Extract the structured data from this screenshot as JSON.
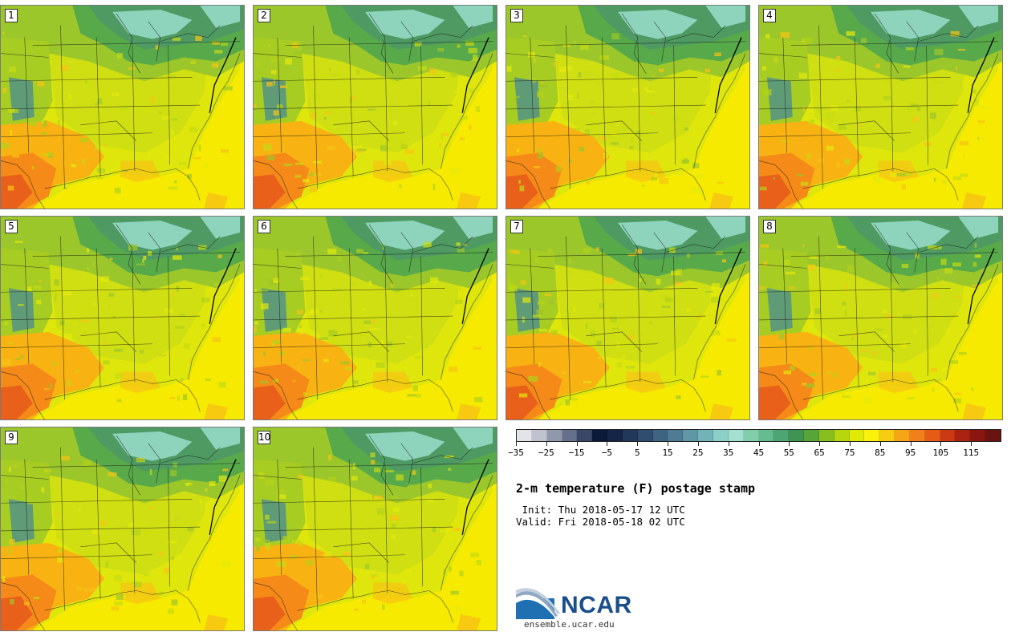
{
  "panels": [
    "1",
    "2",
    "3",
    "4",
    "5",
    "6",
    "7",
    "8",
    "9",
    "10"
  ],
  "colorbar": {
    "colors": [
      "#e3e4e8",
      "#c0c3cf",
      "#9098ab",
      "#66708a",
      "#3b4766",
      "#0c1a3a",
      "#162447",
      "#22385a",
      "#2f4d6e",
      "#3e6481",
      "#4f7c94",
      "#6097a6",
      "#72b3b7",
      "#8ccfc6",
      "#a3e0d1",
      "#82ceab",
      "#66bb90",
      "#4ea574",
      "#3f9451",
      "#57a538",
      "#89bf1c",
      "#b6d60e",
      "#e0ea06",
      "#fbf20c",
      "#f8cc12",
      "#f6a516",
      "#f2801a",
      "#e65c17",
      "#cc3a13",
      "#ab2210",
      "#8c160f",
      "#6a1410"
    ],
    "tick_labels": [
      "−35",
      "−25",
      "−15",
      "−5",
      "5",
      "15",
      "25",
      "35",
      "45",
      "55",
      "65",
      "75",
      "85",
      "95",
      "105",
      "115"
    ]
  },
  "title": "2-m temperature (F) postage stamp",
  "init_line": " Init: Thu 2018-05-17 12 UTC",
  "valid_line": "Valid: Fri 2018-05-18 02 UTC",
  "logo_text": "NCAR",
  "website": "ensemble.ucar.edu"
}
